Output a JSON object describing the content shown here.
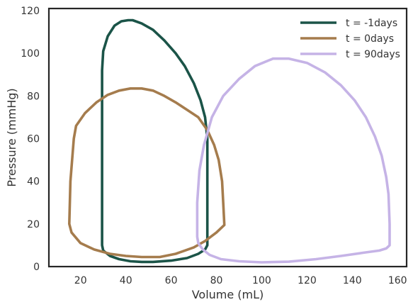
{
  "chart_data": {
    "type": "line",
    "xlabel": "Volume (mL)",
    "ylabel": "Pressure (mmHg)",
    "xlim": [
      6,
      164
    ],
    "ylim": [
      0,
      121
    ],
    "xticks": [
      20,
      40,
      60,
      80,
      100,
      120,
      140,
      160
    ],
    "yticks": [
      0,
      20,
      40,
      60,
      80,
      100,
      120
    ],
    "grid": false,
    "legend_position": "top-right",
    "series": [
      {
        "name": "t = -1days",
        "color": "#1b5448",
        "x": [
          29.5,
          29.5,
          30,
          32,
          35,
          38,
          41,
          43,
          47,
          52,
          57,
          62,
          66,
          70,
          73,
          75,
          76,
          76,
          76,
          75,
          72,
          67,
          60,
          52,
          47,
          42,
          37,
          33,
          30,
          29.5
        ],
        "y": [
          10,
          92,
          101,
          108,
          113,
          115,
          115.5,
          115.5,
          114,
          111,
          106,
          100,
          94,
          86,
          78,
          70,
          60,
          14,
          10,
          8,
          6,
          4,
          2.8,
          2.2,
          2.2,
          2.5,
          3.5,
          5,
          7.5,
          10
        ]
      },
      {
        "name": "t = 0days",
        "color": "#a57c4d",
        "x": [
          18,
          22,
          27,
          32,
          37,
          42,
          47,
          52,
          57,
          62,
          67,
          72,
          76,
          79,
          81,
          82.5,
          83,
          83.5,
          80,
          75,
          70,
          62,
          55,
          47,
          40,
          33,
          26,
          20,
          16,
          15,
          15.5,
          17
        ],
        "y": [
          66,
          72,
          77,
          80.5,
          82.5,
          83.5,
          83.5,
          82.5,
          80,
          77,
          73.5,
          70,
          64,
          57,
          50,
          40,
          30,
          19.5,
          16,
          12,
          9,
          6,
          4.5,
          4.5,
          5,
          6,
          8,
          11,
          16,
          20,
          40,
          60
        ]
      },
      {
        "name": "t = 90days",
        "color": "#c5b3e6",
        "x": [
          71.5,
          71.5,
          72.5,
          74.5,
          78,
          83,
          90,
          97,
          105,
          112,
          120,
          128,
          135,
          141,
          146,
          150,
          153,
          155,
          156,
          156.5,
          156.5,
          155,
          152,
          145,
          135,
          124,
          112,
          100,
          90,
          82,
          77,
          74,
          72
        ],
        "y": [
          14,
          30,
          45,
          57,
          70,
          80,
          88,
          94,
          97.5,
          97.5,
          95.5,
          91,
          85,
          78,
          70,
          61,
          52,
          42,
          34,
          20,
          10,
          8.5,
          7.5,
          6.5,
          5,
          3.5,
          2.3,
          2,
          2.5,
          3.5,
          5.5,
          8,
          11
        ]
      }
    ]
  }
}
